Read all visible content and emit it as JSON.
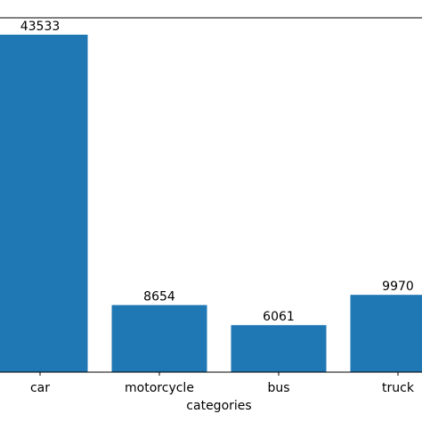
{
  "chart_data": {
    "type": "bar",
    "x_label": "categories",
    "categories": [
      "car",
      "motorcycle",
      "bus",
      "truck"
    ],
    "values": [
      43533,
      8654,
      6061,
      9970
    ],
    "color": "#1f77b4",
    "ylim": [
      0,
      45710
    ]
  }
}
